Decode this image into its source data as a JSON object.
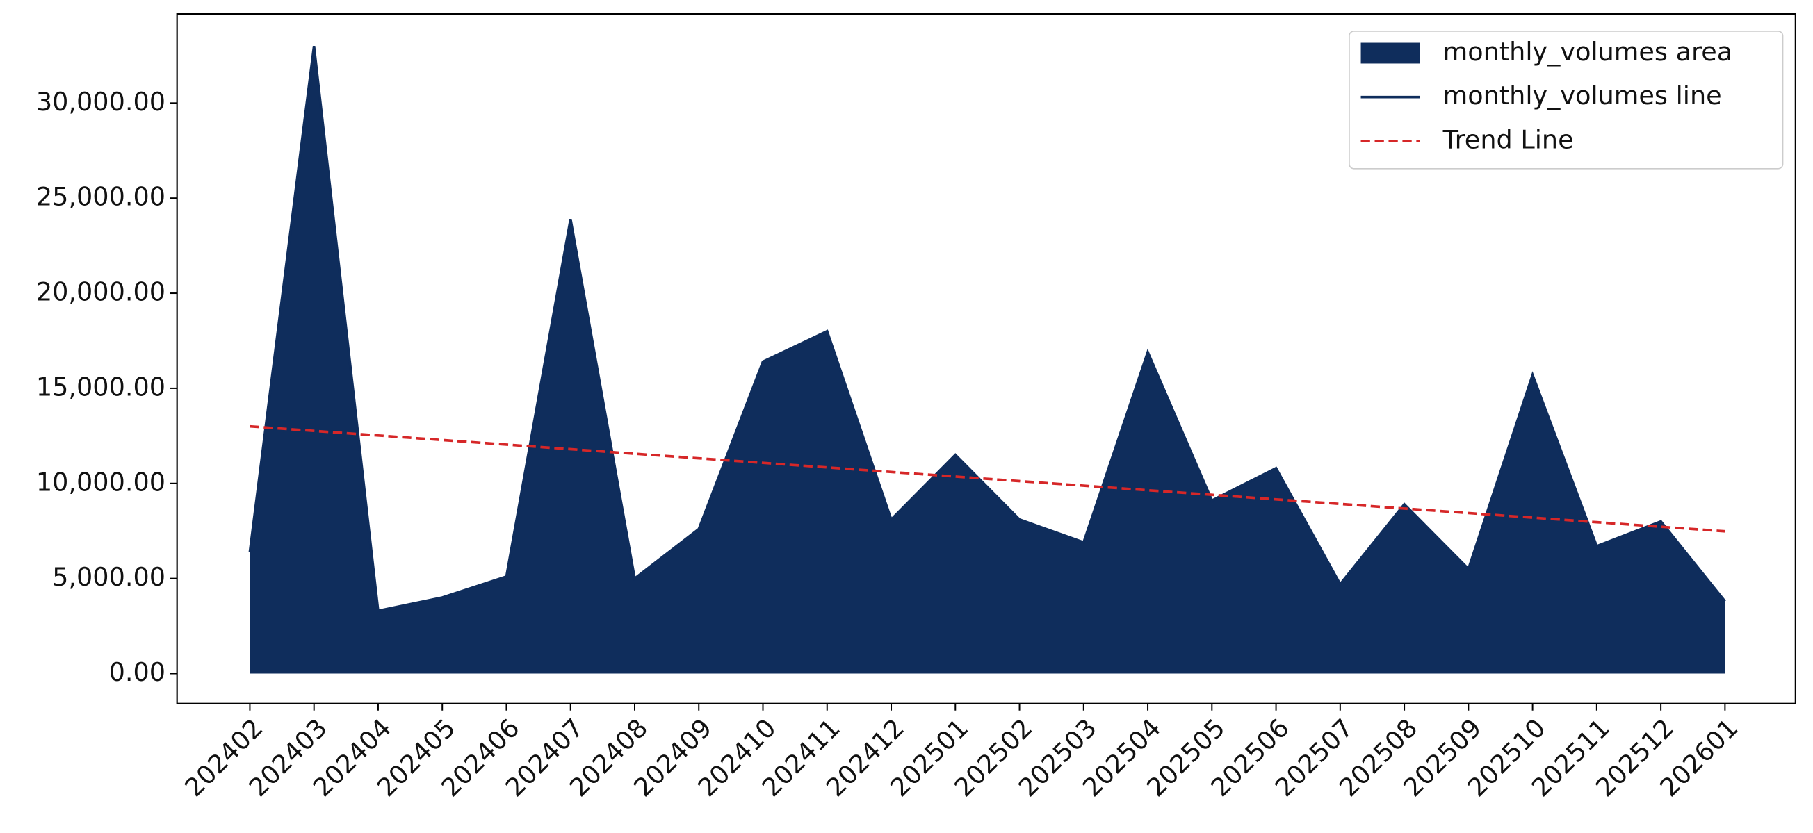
{
  "chart_data": {
    "type": "area",
    "categories": [
      "202402",
      "202403",
      "202404",
      "202405",
      "202406",
      "202407",
      "202408",
      "202409",
      "202410",
      "202411",
      "202412",
      "202501",
      "202502",
      "202503",
      "202504",
      "202505",
      "202506",
      "202507",
      "202508",
      "202509",
      "202510",
      "202511",
      "202512",
      "202601"
    ],
    "series": [
      {
        "name": "monthly_volumes area",
        "style": "area",
        "color": "#0f2d5c",
        "values": [
          6400,
          33000,
          3300,
          4000,
          5100,
          23900,
          5000,
          7600,
          16400,
          18000,
          8100,
          11500,
          8100,
          6900,
          16900,
          9100,
          10800,
          4700,
          8900,
          5500,
          15700,
          6700,
          8000,
          3800
        ]
      },
      {
        "name": "monthly_volumes line",
        "style": "line",
        "color": "#0f2d5c",
        "values": [
          6400,
          33000,
          3300,
          4000,
          5100,
          23900,
          5000,
          7600,
          16400,
          18000,
          8100,
          11500,
          8100,
          6900,
          16900,
          9100,
          10800,
          4700,
          8900,
          5500,
          15700,
          6700,
          8000,
          3800
        ]
      },
      {
        "name": "Trend Line",
        "style": "dashed",
        "color": "#d62728",
        "values": [
          13000,
          12760,
          12520,
          12280,
          12040,
          11800,
          11560,
          11320,
          11080,
          10840,
          10600,
          10360,
          10120,
          9880,
          9640,
          9400,
          9160,
          8920,
          8680,
          8440,
          8200,
          7960,
          7720,
          7480
        ]
      }
    ],
    "ylim": [
      -1580,
      34690
    ],
    "yticks": [
      {
        "value": 0,
        "label": "0.00"
      },
      {
        "value": 5000,
        "label": "5,000.00"
      },
      {
        "value": 10000,
        "label": "10,000.00"
      },
      {
        "value": 15000,
        "label": "15,000.00"
      },
      {
        "value": 20000,
        "label": "20,000.00"
      },
      {
        "value": 25000,
        "label": "25,000.00"
      },
      {
        "value": 30000,
        "label": "30,000.00"
      }
    ],
    "legend": "upper right",
    "grid": false
  }
}
